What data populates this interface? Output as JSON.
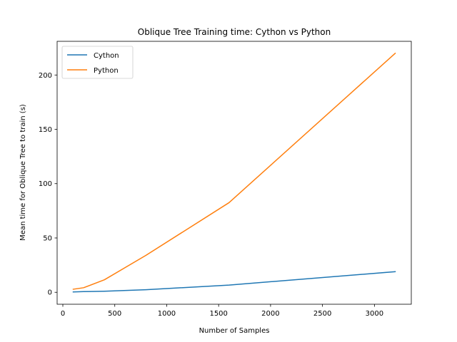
{
  "chart_data": {
    "type": "line",
    "title": "Oblique Tree Training time: Cython vs Python",
    "xlabel": "Number of Samples",
    "ylabel": "Mean time for Oblique Tree to train (s)",
    "x": [
      100,
      200,
      400,
      800,
      1600,
      3200
    ],
    "series": [
      {
        "name": "Cython",
        "color": "#1f77b4",
        "values": [
          0.3,
          0.6,
          1.0,
          2.4,
          6.6,
          19.0
        ]
      },
      {
        "name": "Python",
        "color": "#ff7f0e",
        "values": [
          2.8,
          4.2,
          11.5,
          34.0,
          82.5,
          220.0
        ]
      }
    ],
    "xlim": [
      -55,
      3355
    ],
    "ylim": [
      -11,
      231
    ],
    "xticks": [
      0,
      500,
      1000,
      1500,
      2000,
      2500,
      3000
    ],
    "yticks": [
      0,
      50,
      100,
      150,
      200
    ],
    "grid": false,
    "legend_position": "upper-left"
  }
}
